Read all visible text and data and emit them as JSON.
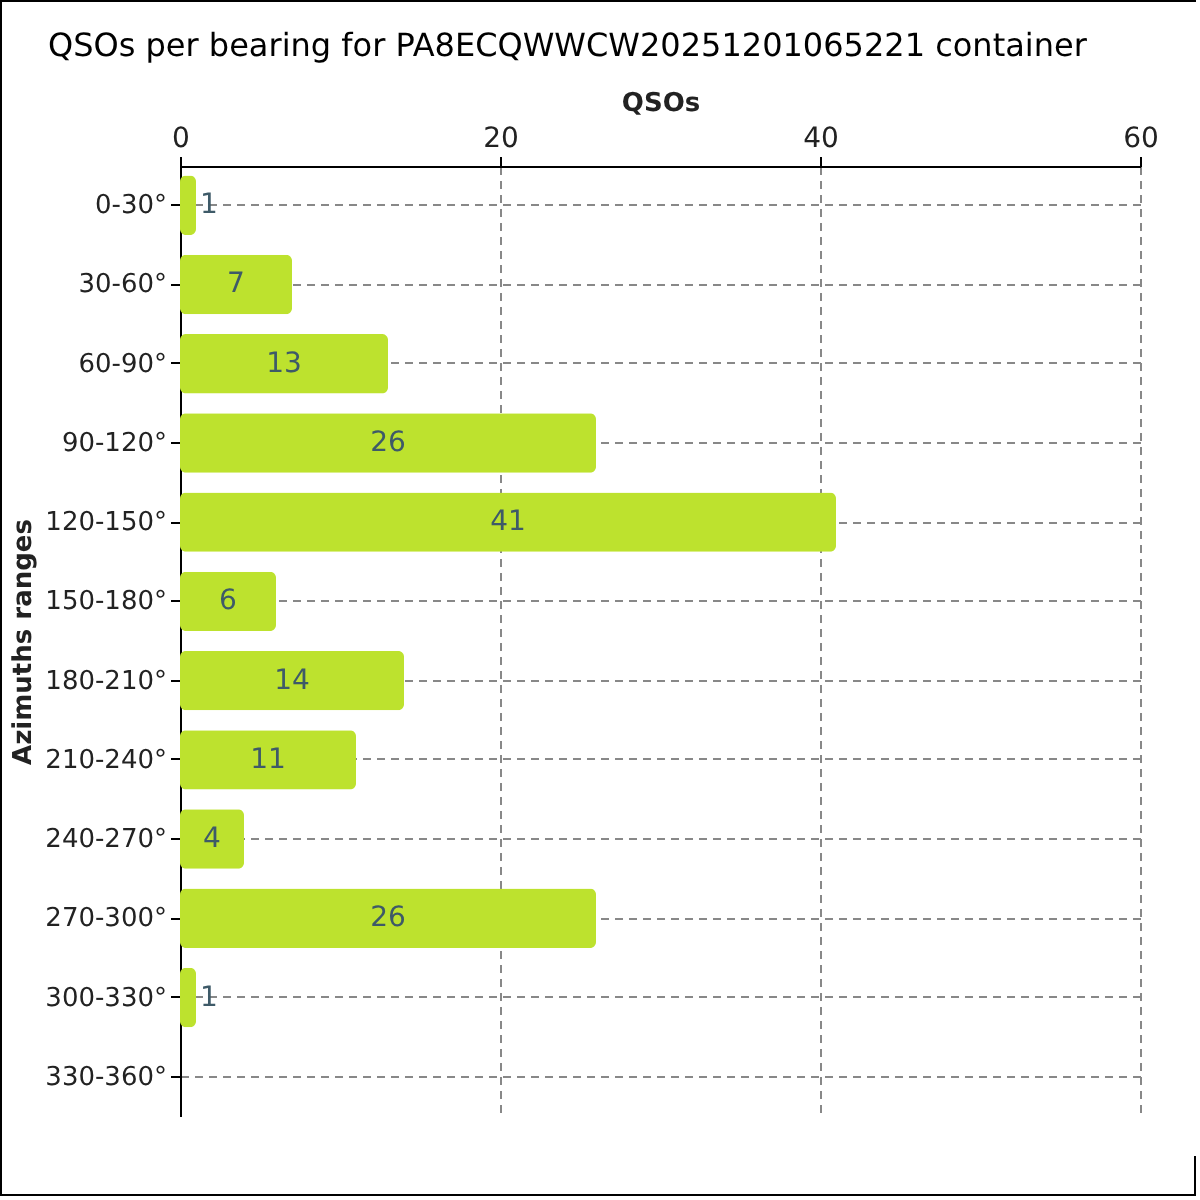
{
  "chart_data": {
    "type": "bar",
    "orientation": "horizontal",
    "title": "QSOs per bearing for PA8ECQWWCW20251201065221 container",
    "xlabel": "QSOs",
    "ylabel": "Azimuths ranges",
    "categories": [
      "0-30°",
      "30-60°",
      "60-90°",
      "90-120°",
      "120-150°",
      "150-180°",
      "180-210°",
      "210-240°",
      "240-270°",
      "270-300°",
      "300-330°",
      "330-360°"
    ],
    "values": [
      1,
      7,
      13,
      26,
      41,
      6,
      14,
      11,
      4,
      26,
      1,
      0
    ],
    "value_labels": [
      "1",
      "7",
      "13",
      "26",
      "41",
      "6",
      "14",
      "11",
      "4",
      "26",
      "1",
      null
    ],
    "color": "#bde22e",
    "xlim": [
      0,
      60
    ],
    "xticks": [
      0,
      20,
      40,
      60
    ],
    "grid": true
  }
}
